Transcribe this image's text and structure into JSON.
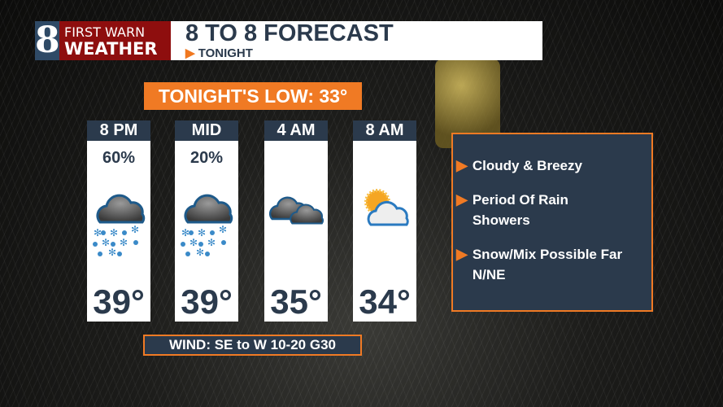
{
  "header": {
    "logo_number": "8",
    "logo_line1": "FIRST WARN",
    "logo_line2": "WEATHER",
    "title": "8 TO 8 FORECAST",
    "subtitle": "TONIGHT"
  },
  "low": {
    "label": "TONIGHT'S LOW:  33°"
  },
  "periods": [
    {
      "time": "8 PM",
      "precip": "60%",
      "icon": "cloud-rain-snow-icon",
      "temp": "39°"
    },
    {
      "time": "MID",
      "precip": "20%",
      "icon": "cloud-rain-snow-icon",
      "temp": "39°"
    },
    {
      "time": "4 AM",
      "precip": "",
      "icon": "cloudy-icon",
      "temp": "35°"
    },
    {
      "time": "8 AM",
      "precip": "",
      "icon": "partly-cloudy-icon",
      "temp": "34°"
    }
  ],
  "wind": "WIND:  SE to W 10-20 G30",
  "points": [
    "Cloudy & Breezy",
    "Period Of Rain Showers",
    "Snow/Mix Possible Far N/NE"
  ],
  "colors": {
    "accent": "#f07a24",
    "navy": "#2b3a4c",
    "brand_red": "#8e0e0e"
  }
}
